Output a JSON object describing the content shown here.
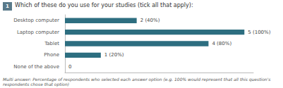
{
  "chart_data": {
    "type": "bar",
    "orientation": "horizontal",
    "title": "Which of these do you use for your studies (tick all that apply):",
    "annotations": [
      "1",
      "Multi answer: Percentage of respondents who selected each answer option (e.g. 100% would represent that all this question's respondents chose that option)"
    ],
    "categories": [
      "Desktop computer",
      "Laptop computer",
      "Tablet",
      "Phone",
      "None of the above"
    ],
    "values": [
      40,
      100,
      80,
      20,
      0
    ],
    "value_labels": [
      "2 (40%)",
      "5 (100%)",
      "4 (80%)",
      "1 (20%)",
      "0"
    ],
    "data_labels": true,
    "color": "#2d6e80",
    "xlim": [
      0,
      105
    ],
    "tick_labels": "y",
    "grid": false
  }
}
